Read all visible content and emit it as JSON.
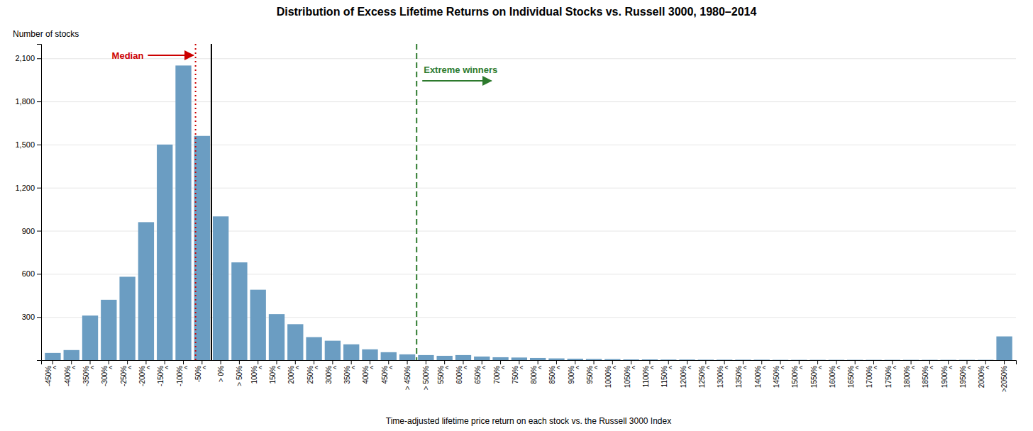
{
  "chart_data": {
    "type": "bar",
    "title": "Distribution of Excess Lifetime Returns on Individual Stocks vs. Russell 3000, 1980–2014",
    "xlabel": "Time-adjusted lifetime price return on each stock vs. the Russell 3000 Index",
    "ylabel": "Number of stocks",
    "categories": [
      "-450%\n^",
      "-400%\n^",
      "-350%\n^",
      "-300%\n^",
      "-250%\n^",
      "-200%\n^",
      "-150%\n^",
      "-100%\n^",
      "-50%\n^",
      "> 0%",
      "> 50%",
      "100%\n^",
      "150%\n^",
      "200%\n^",
      "250%\n^",
      "300%\n^",
      "350%\n^",
      "400%\n^",
      "450%\n^",
      "> 450%",
      "> 500%",
      "550%\n^",
      "600%\n^",
      "650%\n^",
      "700%\n^",
      "750%\n^",
      "800%\n^",
      "850%\n^",
      "900%\n^",
      "950%\n^",
      "1000%\n^",
      "1050%\n^",
      "1100%\n^",
      "1150%\n^",
      "1200%\n^",
      "1250%\n^",
      "1300%\n^",
      "1350%\n^",
      "1400%\n^",
      "1450%\n^",
      "1500%\n^",
      "1550%\n^",
      "1600%\n^",
      "1650%\n^",
      "1700%\n^",
      "1750%\n^",
      "1800%\n^",
      "1850%\n^",
      "1900%\n^",
      "1950%\n^",
      "2000%\n^",
      ">2050%"
    ],
    "values": [
      50,
      70,
      310,
      420,
      580,
      960,
      1500,
      2050,
      1560,
      1000,
      680,
      490,
      320,
      250,
      160,
      135,
      110,
      75,
      55,
      40,
      35,
      30,
      35,
      25,
      20,
      18,
      15,
      12,
      10,
      8,
      7,
      5,
      5,
      4,
      4,
      3,
      3,
      3,
      3,
      2,
      2,
      2,
      2,
      2,
      2,
      2,
      2,
      2,
      2,
      2,
      2,
      165
    ],
    "color": "#6b9dc2",
    "ylim": [
      0,
      2200
    ],
    "yticks": [
      300,
      600,
      900,
      {
        "value": 1200,
        "label": "1,200"
      },
      {
        "value": 1500,
        "label": "1,500"
      },
      {
        "value": 1800,
        "label": "1,800"
      },
      {
        "value": 2100,
        "label": "2,100"
      }
    ],
    "grid": true,
    "annotations": [
      {
        "text": "Median",
        "x": 7.65,
        "color": "#cc0000",
        "line_style": "dotted"
      },
      {
        "x": 8.5,
        "color": "black",
        "line_style": "solid"
      },
      {
        "text": "Extreme winners",
        "x": 19.5,
        "color": "#2d7a2d",
        "line_style": "dashed"
      }
    ]
  }
}
